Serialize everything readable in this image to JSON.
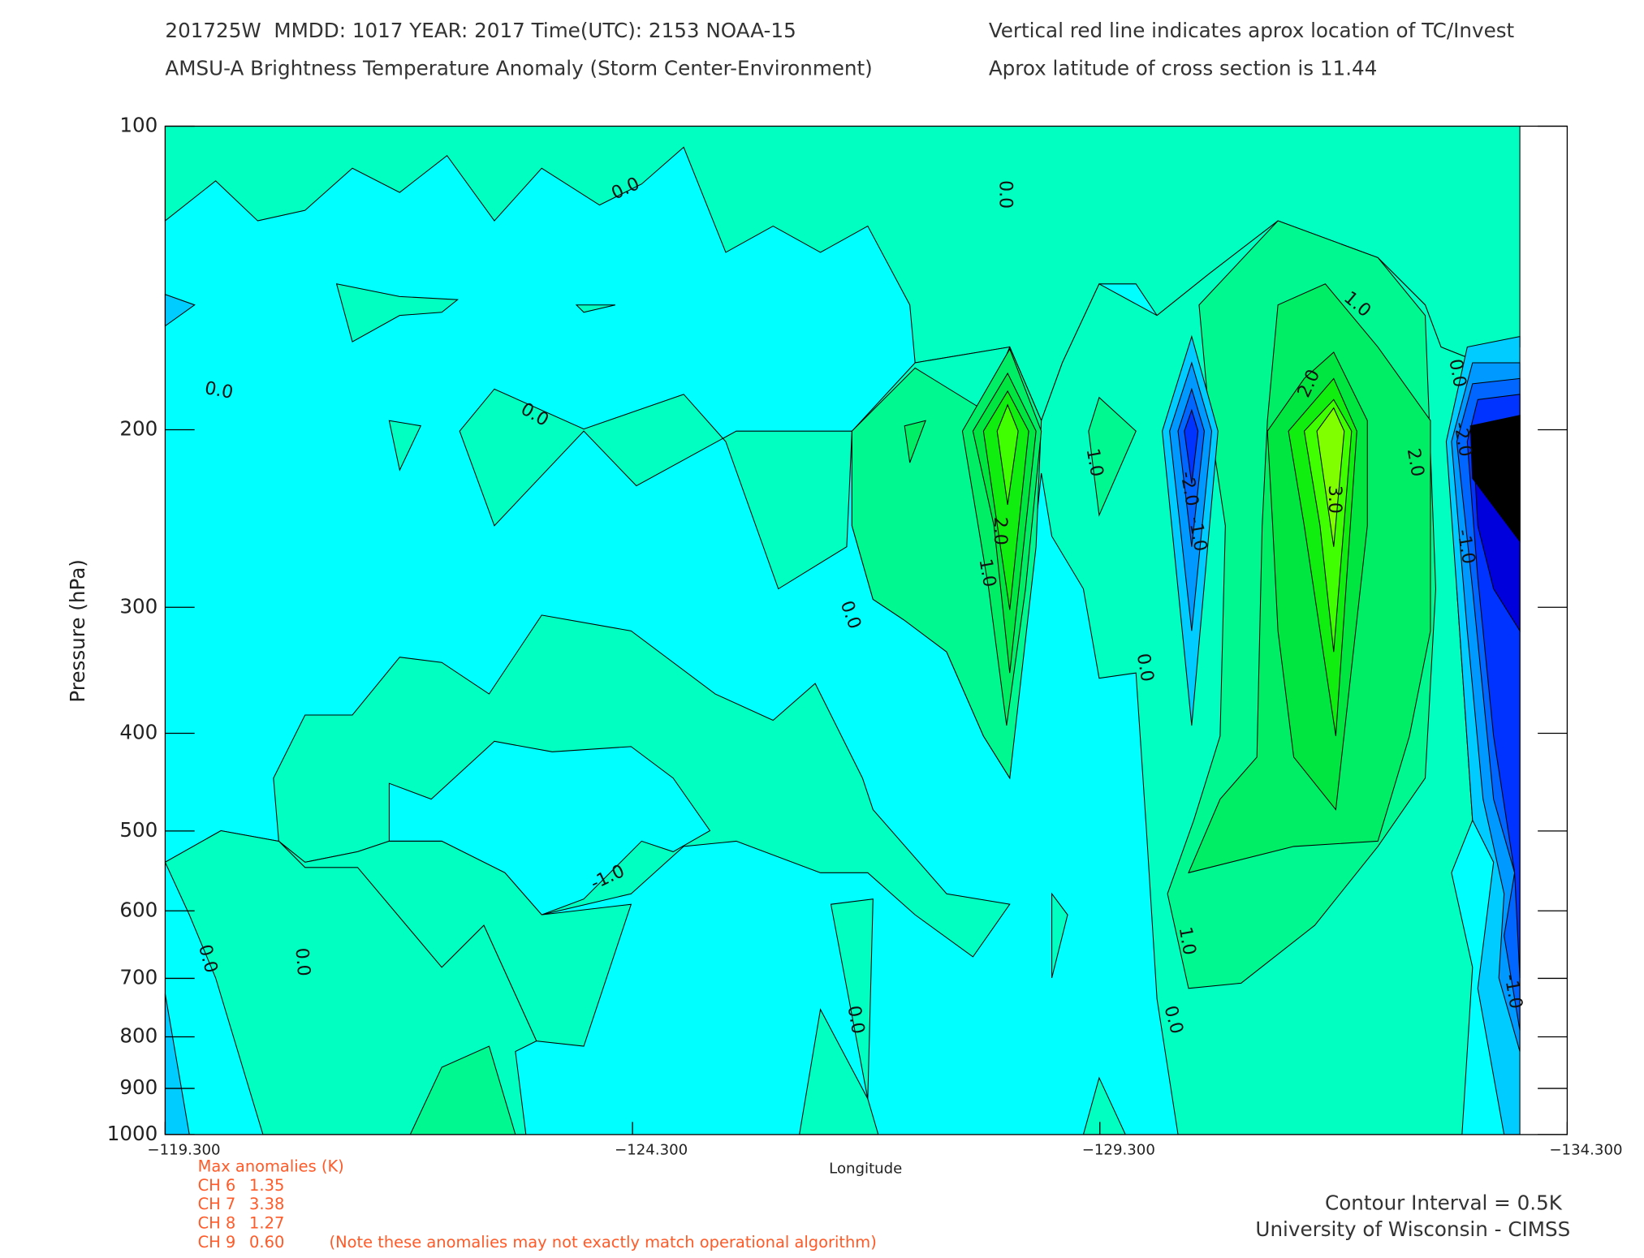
{
  "chart_data": {
    "type": "contour",
    "title": [
      "201725W  MMDD: 1017 YEAR: 2017 Time(UTC): 2153 NOAA-15",
      "AMSU-A Brightness Temperature Anomaly (Storm Center-Environment)"
    ],
    "notes": [
      "Vertical red line indicates aprox location of TC/Invest",
      "Aprox latitude of cross section is 11.44"
    ],
    "x_label": "Longitude",
    "y_label": "Pressure (hPa)",
    "xlim": [
      -119.3,
      -134.3
    ],
    "xticks": [
      {
        "value": -119.3,
        "label": "−119.300"
      },
      {
        "value": -124.3,
        "label": "−124.300"
      },
      {
        "value": -129.3,
        "label": "−129.300"
      },
      {
        "value": -134.3,
        "label": "−134.300"
      }
    ],
    "ylim": [
      1000,
      100
    ],
    "y_log": true,
    "yticks": [
      100,
      200,
      300,
      400,
      500,
      600,
      700,
      800,
      900,
      1000
    ],
    "contour_labels": [
      {
        "value": 0,
        "label": "0.0"
      },
      {
        "value": 0,
        "label": "0.0"
      },
      {
        "value": 1,
        "label": "1.0"
      },
      {
        "value": 0,
        "label": "0.0"
      },
      {
        "value": 0,
        "label": "0.0"
      },
      {
        "value": 0,
        "label": "0.0"
      },
      {
        "value": 2,
        "label": "2.0"
      },
      {
        "value": 1,
        "label": "1.0"
      },
      {
        "value": -2,
        "label": "-2.0"
      },
      {
        "value": -1,
        "label": "-1.0"
      },
      {
        "value": 3,
        "label": "3.0"
      },
      {
        "value": 2,
        "label": "2.0"
      },
      {
        "value": -2,
        "label": "-2.0"
      },
      {
        "value": -1,
        "label": "-1.0"
      },
      {
        "value": 2,
        "label": "2.0"
      },
      {
        "value": 1,
        "label": "1.0"
      },
      {
        "value": 0,
        "label": "0.0"
      },
      {
        "value": 0,
        "label": "0.0"
      },
      {
        "value": -1,
        "label": "-1.0"
      },
      {
        "value": 1,
        "label": "1.0"
      },
      {
        "value": 0,
        "label": "0.0"
      },
      {
        "value": 0,
        "label": "0.0"
      },
      {
        "value": 0,
        "label": "0.0"
      },
      {
        "value": 0,
        "label": "0.0"
      },
      {
        "value": -1,
        "label": "-1.0"
      }
    ],
    "max_anomalies": {
      "title": "Max anomalies (K)",
      "rows": [
        {
          "channel": "CH 6",
          "value": 1.35
        },
        {
          "channel": "CH 7",
          "value": 3.38
        },
        {
          "channel": "CH 8",
          "value": 1.27
        },
        {
          "channel": "CH 9",
          "value": 0.6,
          "value_label": "0.60"
        }
      ]
    },
    "anomaly_note": "(Note these anomalies may not exactly match operational algorithm)",
    "contour_interval": "Contour Interval = 0.5K",
    "credit": "University of Wisconsin - CIMSS"
  }
}
